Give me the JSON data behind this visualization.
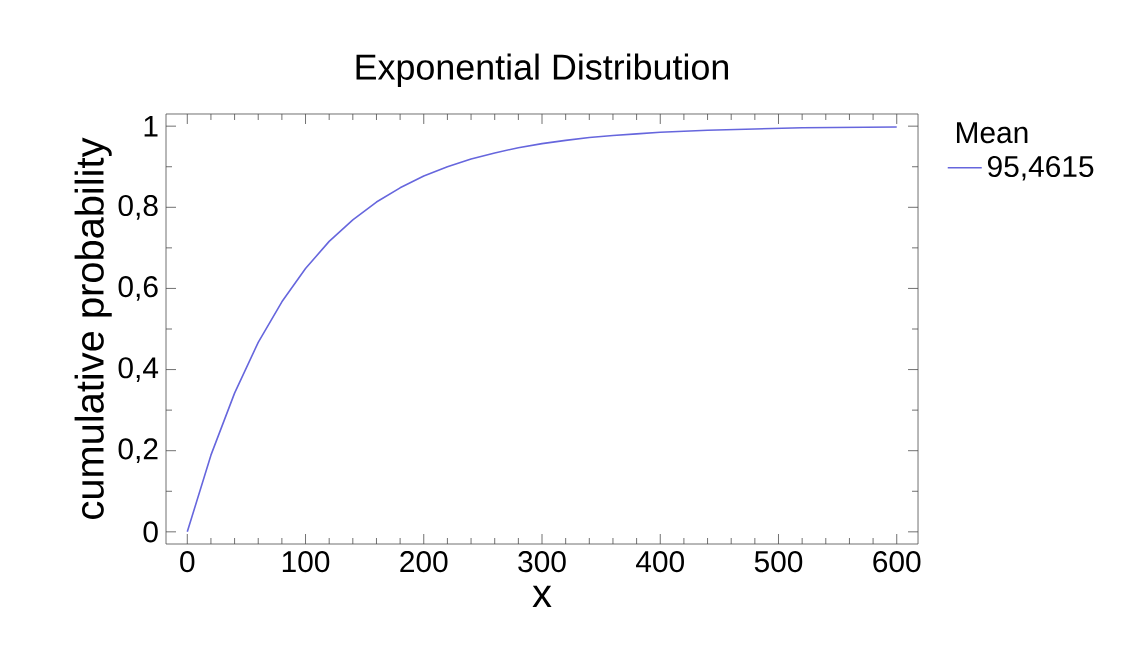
{
  "chart_data": {
    "type": "line",
    "title": "Exponential Distribution",
    "xlabel": "x",
    "ylabel": "cumulative probability",
    "legend_title": "Mean",
    "legend": "right",
    "x": [
      0,
      20,
      40,
      60,
      80,
      100,
      120,
      140,
      160,
      180,
      200,
      220,
      240,
      260,
      280,
      300,
      320,
      340,
      360,
      380,
      400,
      440,
      480,
      520,
      560,
      600
    ],
    "series": [
      {
        "name": "95,4615",
        "color": "#6666dd",
        "values": [
          0,
          0.189,
          0.342,
          0.467,
          0.567,
          0.649,
          0.716,
          0.769,
          0.813,
          0.848,
          0.877,
          0.9,
          0.919,
          0.934,
          0.947,
          0.957,
          0.965,
          0.972,
          0.977,
          0.981,
          0.985,
          0.99,
          0.993,
          0.996,
          0.997,
          0.998
        ]
      }
    ],
    "xlim": [
      -18,
      618
    ],
    "ylim": [
      -0.03,
      1.03
    ],
    "xticks": [
      0,
      100,
      200,
      300,
      400,
      500,
      600
    ],
    "yticks": [
      0,
      {
        "value": 0.2,
        "label": "0,2"
      },
      {
        "value": 0.4,
        "label": "0,4"
      },
      {
        "value": 0.6,
        "label": "0,6"
      },
      {
        "value": 0.8,
        "label": "0,8"
      },
      1
    ]
  }
}
